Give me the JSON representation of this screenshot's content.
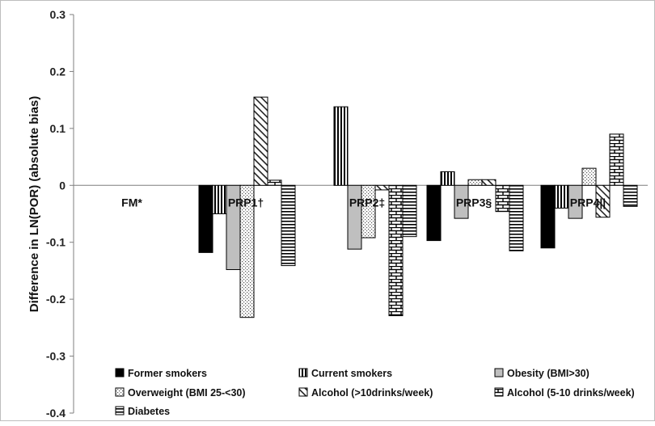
{
  "chart_data": {
    "type": "bar",
    "title": "",
    "xlabel": "",
    "ylabel": "Difference in LN(POR) (absolute bias)",
    "ylim": [
      -0.4,
      0.3
    ],
    "yticks": [
      "0.3",
      "0.2",
      "0.1",
      "0",
      "-0.1",
      "-0.2",
      "-0.3",
      "-0.4"
    ],
    "grid": false,
    "legend_position": "bottom",
    "categories": [
      "FM*",
      "PRP1†",
      "PRP2‡",
      "PRP3§",
      "PRP4||"
    ],
    "series": [
      {
        "name": "Former smokers",
        "pattern": "solid-black",
        "values": [
          0,
          -0.118,
          null,
          -0.097,
          -0.11
        ]
      },
      {
        "name": "Current smokers",
        "pattern": "vertical-lines",
        "values": [
          0,
          -0.05,
          0.138,
          0.024,
          -0.04
        ]
      },
      {
        "name": "Obesity (BMI>30)",
        "pattern": "solid-gray",
        "values": [
          0,
          -0.148,
          -0.112,
          -0.058,
          -0.058
        ]
      },
      {
        "name": "Overweight (BMI 25-<30)",
        "pattern": "dots",
        "values": [
          0,
          -0.232,
          -0.092,
          0.01,
          0.03
        ]
      },
      {
        "name": "Alcohol (>10drinks/week)",
        "pattern": "diagonal",
        "values": [
          0,
          0.155,
          -0.008,
          0.01,
          -0.056
        ]
      },
      {
        "name": "Alcohol (5-10 drinks/week)",
        "pattern": "bricks",
        "values": [
          0,
          0.009,
          -0.229,
          -0.046,
          0.09
        ]
      },
      {
        "name": "Diabetes",
        "pattern": "horizontal-lines",
        "values": [
          0,
          -0.141,
          -0.09,
          -0.115,
          -0.037
        ]
      }
    ]
  }
}
